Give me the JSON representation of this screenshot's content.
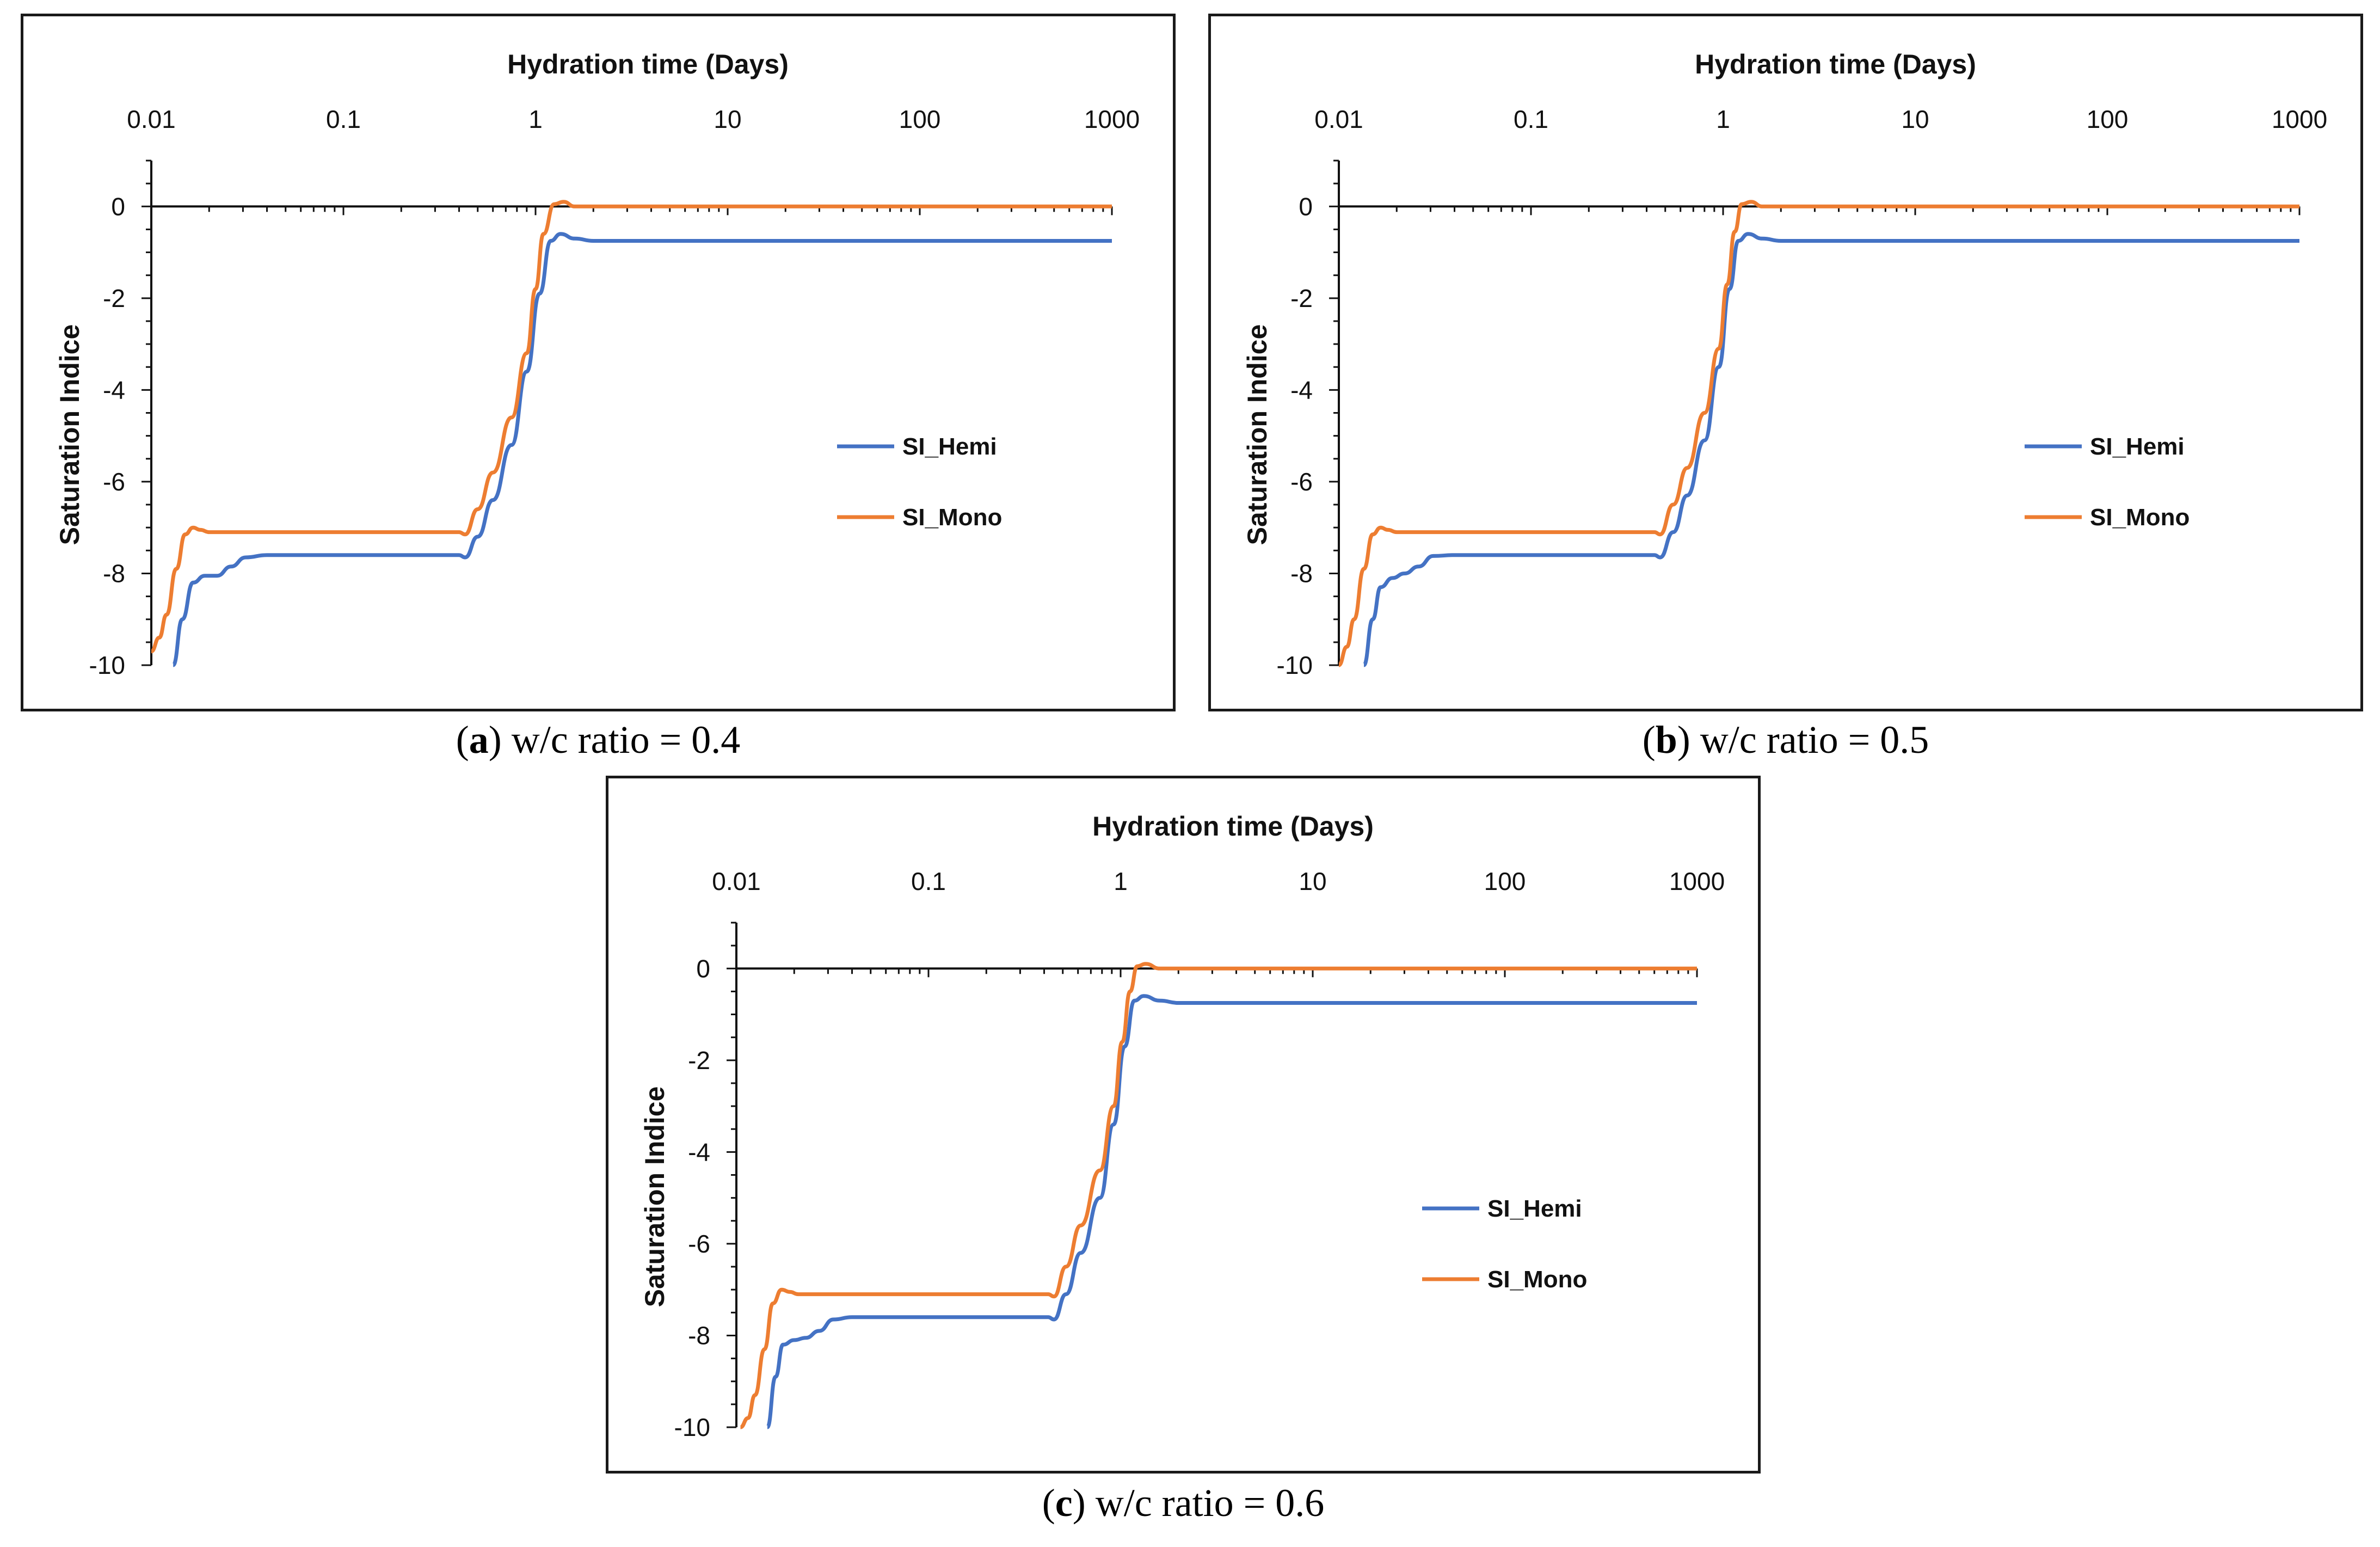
{
  "chart_data": [
    {
      "type": "line",
      "panel_letter": "a",
      "caption_text": " w/c ratio = 0.4",
      "xlabel": "Hydration time (Days)",
      "ylabel": "Saturation Indice",
      "x_scale": "log",
      "xlim": [
        0.01,
        1000
      ],
      "ylim": [
        -10,
        1
      ],
      "x_ticks": [
        "0.01",
        "0.1",
        "1",
        "10",
        "100",
        "1000"
      ],
      "y_ticks": [
        "0",
        "-2",
        "-4",
        "-6",
        "-8",
        "-10"
      ],
      "legend_position": "center-right",
      "series": [
        {
          "name": "SI_Hemi",
          "color": "#4472C4",
          "x": [
            0.013,
            0.0145,
            0.0165,
            0.019,
            0.022,
            0.026,
            0.031,
            0.04,
            0.1,
            0.3,
            0.4,
            0.43,
            0.5,
            0.6,
            0.75,
            0.9,
            1.05,
            1.2,
            1.35,
            1.6,
            2,
            10,
            100,
            1000
          ],
          "y": [
            -10,
            -9,
            -8.2,
            -8.05,
            -8.05,
            -7.85,
            -7.65,
            -7.6,
            -7.6,
            -7.6,
            -7.6,
            -7.65,
            -7.2,
            -6.4,
            -5.2,
            -3.6,
            -1.9,
            -0.75,
            -0.6,
            -0.7,
            -0.75,
            -0.75,
            -0.75,
            -0.75
          ]
        },
        {
          "name": "SI_Mono",
          "color": "#ED7D31",
          "x": [
            0.01,
            0.011,
            0.012,
            0.0135,
            0.015,
            0.0165,
            0.018,
            0.02,
            0.023,
            0.03,
            0.1,
            0.3,
            0.4,
            0.43,
            0.5,
            0.6,
            0.75,
            0.9,
            1.0,
            1.1,
            1.25,
            1.4,
            1.6,
            2,
            10,
            100,
            1000
          ],
          "y": [
            -9.7,
            -9.4,
            -8.9,
            -7.9,
            -7.15,
            -7.0,
            -7.05,
            -7.1,
            -7.1,
            -7.1,
            -7.1,
            -7.1,
            -7.1,
            -7.15,
            -6.6,
            -5.8,
            -4.6,
            -3.2,
            -1.8,
            -0.6,
            0.05,
            0.1,
            0.0,
            0.0,
            0.0,
            0.0,
            0.0
          ]
        }
      ]
    },
    {
      "type": "line",
      "panel_letter": "b",
      "caption_text": " w/c ratio = 0.5",
      "xlabel": "Hydration time (Days)",
      "ylabel": "Saturation Indice",
      "x_scale": "log",
      "xlim": [
        0.01,
        1000
      ],
      "ylim": [
        -10,
        1
      ],
      "x_ticks": [
        "0.01",
        "0.1",
        "1",
        "10",
        "100",
        "1000"
      ],
      "y_ticks": [
        "0",
        "-2",
        "-4",
        "-6",
        "-8",
        "-10"
      ],
      "legend_position": "center-right",
      "series": [
        {
          "name": "SI_Hemi",
          "color": "#4472C4",
          "x": [
            0.0135,
            0.015,
            0.0165,
            0.019,
            0.022,
            0.026,
            0.031,
            0.04,
            0.1,
            0.3,
            0.44,
            0.47,
            0.55,
            0.65,
            0.8,
            0.95,
            1.08,
            1.2,
            1.35,
            1.6,
            2,
            10,
            100,
            1000
          ],
          "y": [
            -10,
            -9,
            -8.3,
            -8.1,
            -8.0,
            -7.85,
            -7.62,
            -7.6,
            -7.6,
            -7.6,
            -7.6,
            -7.65,
            -7.1,
            -6.3,
            -5.1,
            -3.5,
            -1.8,
            -0.75,
            -0.6,
            -0.7,
            -0.75,
            -0.75,
            -0.75,
            -0.75
          ]
        },
        {
          "name": "SI_Mono",
          "color": "#ED7D31",
          "x": [
            0.01,
            0.011,
            0.012,
            0.0135,
            0.015,
            0.0165,
            0.018,
            0.02,
            0.023,
            0.03,
            0.1,
            0.3,
            0.44,
            0.47,
            0.55,
            0.65,
            0.8,
            0.95,
            1.05,
            1.15,
            1.25,
            1.4,
            1.6,
            2,
            10,
            100,
            1000
          ],
          "y": [
            -10,
            -9.6,
            -9.0,
            -7.9,
            -7.15,
            -7.0,
            -7.05,
            -7.1,
            -7.1,
            -7.1,
            -7.1,
            -7.1,
            -7.1,
            -7.15,
            -6.5,
            -5.7,
            -4.5,
            -3.1,
            -1.7,
            -0.55,
            0.05,
            0.1,
            0.0,
            0.0,
            0.0,
            0.0,
            0.0
          ]
        }
      ]
    },
    {
      "type": "line",
      "panel_letter": "c",
      "caption_text": " w/c ratio = 0.6",
      "xlabel": "Hydration time (Days)",
      "ylabel": "Saturation Indice",
      "x_scale": "log",
      "xlim": [
        0.01,
        1000
      ],
      "ylim": [
        -10,
        1
      ],
      "x_ticks": [
        "0.01",
        "0.1",
        "1",
        "10",
        "100",
        "1000"
      ],
      "y_ticks": [
        "0",
        "-2",
        "-4",
        "-6",
        "-8",
        "-10"
      ],
      "legend_position": "center-right",
      "series": [
        {
          "name": "SI_Hemi",
          "color": "#4472C4",
          "x": [
            0.0145,
            0.016,
            0.0175,
            0.02,
            0.023,
            0.027,
            0.032,
            0.04,
            0.1,
            0.3,
            0.42,
            0.45,
            0.52,
            0.62,
            0.78,
            0.92,
            1.05,
            1.18,
            1.32,
            1.6,
            2,
            10,
            100,
            1000
          ],
          "y": [
            -10,
            -8.9,
            -8.2,
            -8.1,
            -8.05,
            -7.9,
            -7.65,
            -7.6,
            -7.6,
            -7.6,
            -7.6,
            -7.65,
            -7.1,
            -6.2,
            -5.0,
            -3.4,
            -1.7,
            -0.7,
            -0.6,
            -0.7,
            -0.75,
            -0.75,
            -0.75,
            -0.75
          ]
        },
        {
          "name": "SI_Mono",
          "color": "#ED7D31",
          "x": [
            0.0105,
            0.0115,
            0.0125,
            0.014,
            0.0155,
            0.0172,
            0.019,
            0.021,
            0.025,
            0.03,
            0.1,
            0.3,
            0.42,
            0.45,
            0.52,
            0.62,
            0.78,
            0.92,
            1.02,
            1.12,
            1.22,
            1.35,
            1.6,
            2,
            10,
            100,
            1000
          ],
          "y": [
            -10,
            -9.8,
            -9.3,
            -8.3,
            -7.3,
            -7.0,
            -7.05,
            -7.1,
            -7.1,
            -7.1,
            -7.1,
            -7.1,
            -7.1,
            -7.15,
            -6.5,
            -5.6,
            -4.4,
            -3.0,
            -1.6,
            -0.5,
            0.05,
            0.1,
            0.0,
            0.0,
            0.0,
            0.0,
            0.0
          ]
        }
      ]
    }
  ]
}
